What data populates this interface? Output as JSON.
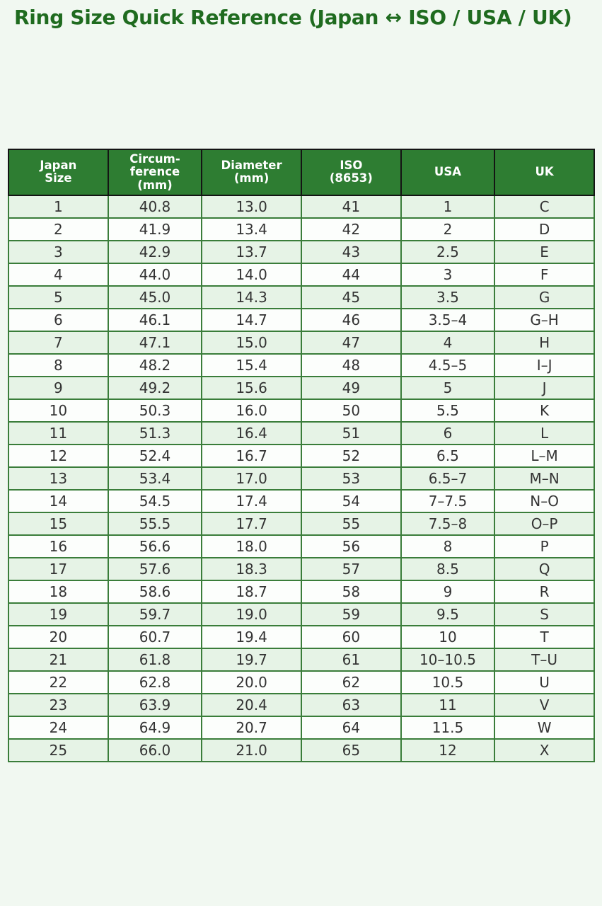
{
  "page": {
    "title": "Ring Size Quick Reference (Japan ↔ ISO / USA / UK)"
  },
  "table": {
    "header_display": [
      "Japan\nSize",
      "Circum-\nference\n(mm)",
      "Diameter\n(mm)",
      "ISO\n(8653)",
      "USA",
      "UK"
    ]
  },
  "chart_data": {
    "type": "table",
    "title": "Ring Size Quick Reference (Japan ↔ ISO / USA / UK)",
    "columns": [
      "Japan Size",
      "Circumference (mm)",
      "Diameter (mm)",
      "ISO (8653)",
      "USA",
      "UK"
    ],
    "rows": [
      [
        "1",
        "40.8",
        "13.0",
        "41",
        "1",
        "C"
      ],
      [
        "2",
        "41.9",
        "13.4",
        "42",
        "2",
        "D"
      ],
      [
        "3",
        "42.9",
        "13.7",
        "43",
        "2.5",
        "E"
      ],
      [
        "4",
        "44.0",
        "14.0",
        "44",
        "3",
        "F"
      ],
      [
        "5",
        "45.0",
        "14.3",
        "45",
        "3.5",
        "G"
      ],
      [
        "6",
        "46.1",
        "14.7",
        "46",
        "3.5–4",
        "G–H"
      ],
      [
        "7",
        "47.1",
        "15.0",
        "47",
        "4",
        "H"
      ],
      [
        "8",
        "48.2",
        "15.4",
        "48",
        "4.5–5",
        "I–J"
      ],
      [
        "9",
        "49.2",
        "15.6",
        "49",
        "5",
        "J"
      ],
      [
        "10",
        "50.3",
        "16.0",
        "50",
        "5.5",
        "K"
      ],
      [
        "11",
        "51.3",
        "16.4",
        "51",
        "6",
        "L"
      ],
      [
        "12",
        "52.4",
        "16.7",
        "52",
        "6.5",
        "L–M"
      ],
      [
        "13",
        "53.4",
        "17.0",
        "53",
        "6.5–7",
        "M–N"
      ],
      [
        "14",
        "54.5",
        "17.4",
        "54",
        "7–7.5",
        "N–O"
      ],
      [
        "15",
        "55.5",
        "17.7",
        "55",
        "7.5–8",
        "O–P"
      ],
      [
        "16",
        "56.6",
        "18.0",
        "56",
        "8",
        "P"
      ],
      [
        "17",
        "57.6",
        "18.3",
        "57",
        "8.5",
        "Q"
      ],
      [
        "18",
        "58.6",
        "18.7",
        "58",
        "9",
        "R"
      ],
      [
        "19",
        "59.7",
        "19.0",
        "59",
        "9.5",
        "S"
      ],
      [
        "20",
        "60.7",
        "19.4",
        "60",
        "10",
        "T"
      ],
      [
        "21",
        "61.8",
        "19.7",
        "61",
        "10–10.5",
        "T–U"
      ],
      [
        "22",
        "62.8",
        "20.0",
        "62",
        "10.5",
        "U"
      ],
      [
        "23",
        "63.9",
        "20.4",
        "63",
        "11",
        "V"
      ],
      [
        "24",
        "64.9",
        "20.7",
        "64",
        "11.5",
        "W"
      ],
      [
        "25",
        "66.0",
        "21.0",
        "65",
        "12",
        "X"
      ]
    ],
    "layout": {
      "striped": true,
      "header_position": "top",
      "grid": "full"
    }
  },
  "colors": {
    "title_text": "#1f6b1f",
    "header_bg": "#2e7d32",
    "header_text": "#ffffff",
    "row_odd_bg": "#e6f3e6",
    "row_even_bg": "#fcfefc",
    "body_text": "#333333",
    "inner_border": "#3a7d3a",
    "outer_border": "#1c1c1c",
    "page_bg": "#f1f8f1"
  }
}
